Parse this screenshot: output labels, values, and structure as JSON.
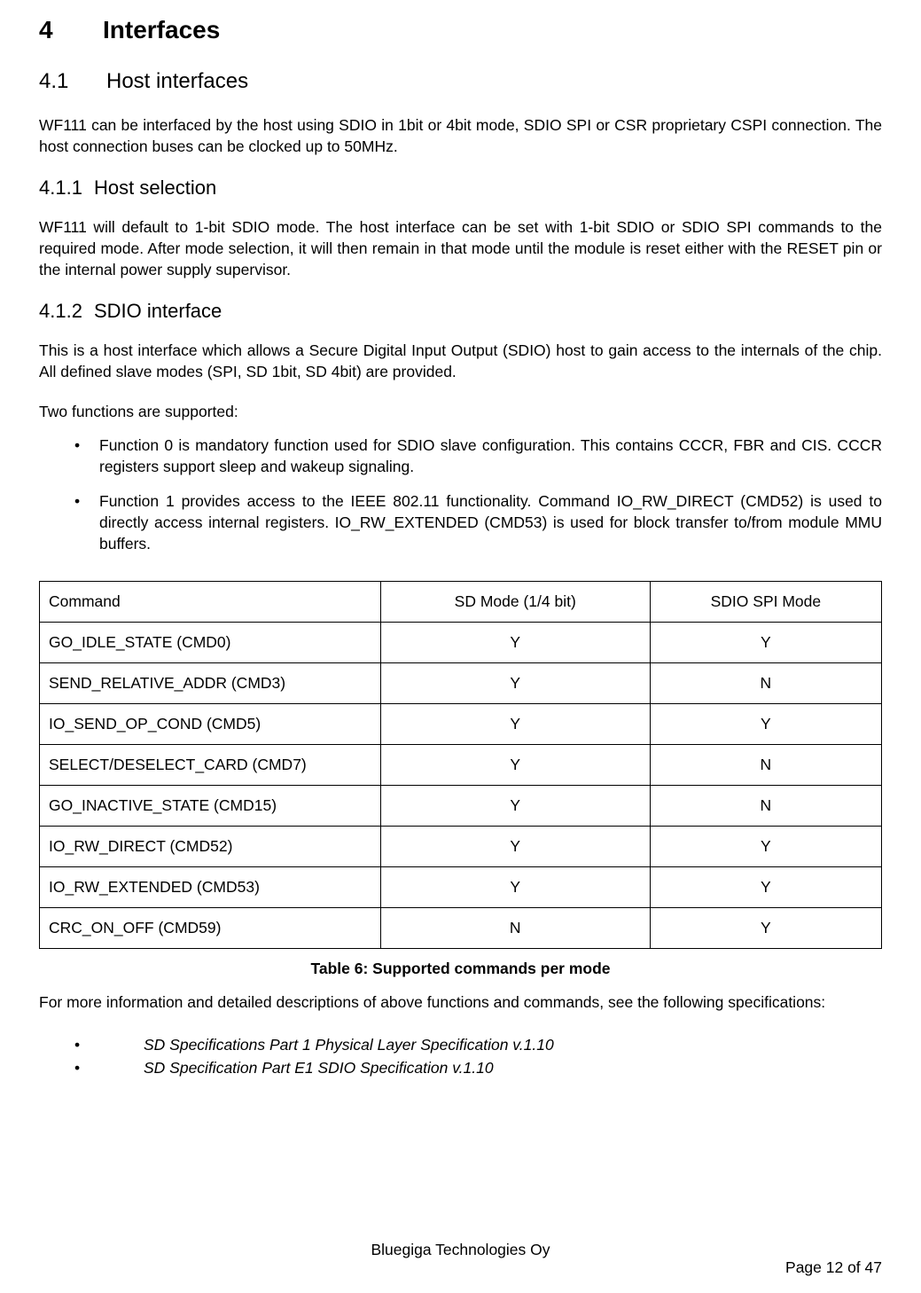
{
  "headings": {
    "h1_num": "4",
    "h1_text": "Interfaces",
    "h2_1_num": "4.1",
    "h2_1_text": "Host interfaces",
    "h3_1_num": "4.1.1",
    "h3_1_text": "Host selection",
    "h3_2_num": "4.1.2",
    "h3_2_text": "SDIO interface"
  },
  "paragraphs": {
    "p1": "WF111 can be interfaced by the host using SDIO in 1bit or 4bit mode, SDIO SPI or CSR proprietary CSPI connection. The host connection buses can be clocked up to 50MHz.",
    "p2": "WF111 will default to 1-bit SDIO mode. The host interface can be set with 1-bit SDIO or SDIO SPI commands to the required mode. After mode selection, it will then remain in that mode until the module is reset either with the RESET pin or the internal power supply supervisor.",
    "p3": "This is a host interface which allows a Secure Digital Input Output (SDIO) host to gain access to the internals of the chip. All defined slave modes (SPI, SD 1bit, SD 4bit) are provided.",
    "p4": "Two functions are supported:",
    "p5": "For more information and detailed descriptions of above functions and commands, see the following specifications:"
  },
  "bullets": {
    "b1": "Function 0 is mandatory function used for SDIO slave configuration. This contains CCCR, FBR and CIS. CCCR registers support sleep and wakeup signaling.",
    "b2": "Function 1 provides access to the IEEE 802.11 functionality. Command IO_RW_DIRECT (CMD52) is used to directly access internal registers. IO_RW_EXTENDED (CMD53) is used for block transfer to/from module MMU buffers."
  },
  "specs": {
    "s1": "SD Specifications Part 1 Physical Layer Specification v.1.10",
    "s2": "SD Specification Part E1 SDIO Specification v.1.10"
  },
  "table": {
    "caption": "Table 6: Supported commands per mode",
    "columns": [
      "Command",
      "SD Mode (1/4 bit)",
      "SDIO SPI Mode"
    ],
    "rows": [
      [
        "GO_IDLE_STATE (CMD0)",
        "Y",
        "Y"
      ],
      [
        "SEND_RELATIVE_ADDR (CMD3)",
        "Y",
        "N"
      ],
      [
        "IO_SEND_OP_COND (CMD5)",
        "Y",
        "Y"
      ],
      [
        "SELECT/DESELECT_CARD (CMD7)",
        "Y",
        "N"
      ],
      [
        "GO_INACTIVE_STATE (CMD15)",
        "Y",
        "N"
      ],
      [
        "IO_RW_DIRECT (CMD52)",
        "Y",
        "Y"
      ],
      [
        "IO_RW_EXTENDED (CMD53)",
        "Y",
        "Y"
      ],
      [
        "CRC_ON_OFF (CMD59)",
        "N",
        "Y"
      ]
    ]
  },
  "footer": {
    "company": "Bluegiga Technologies Oy",
    "page": "Page 12 of 47"
  }
}
